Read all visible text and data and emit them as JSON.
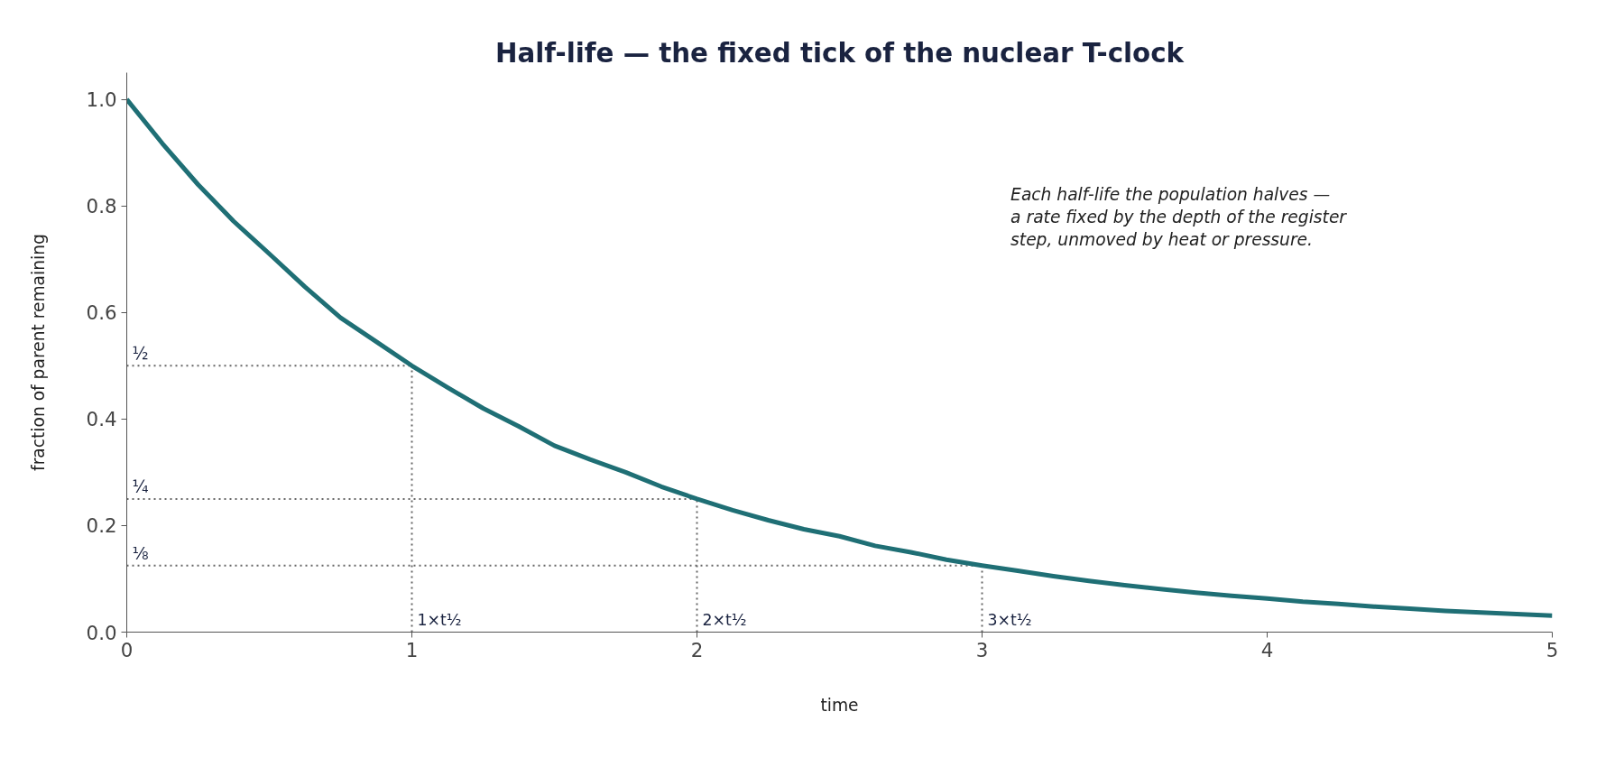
{
  "chart_data": {
    "type": "line",
    "title": "Half-life — the fixed tick of the nuclear T-clock",
    "xlabel": "time",
    "ylabel": "fraction of parent remaining",
    "x": [
      0,
      0.125,
      0.25,
      0.375,
      0.5,
      0.625,
      0.75,
      0.875,
      1,
      1.125,
      1.25,
      1.375,
      1.5,
      1.625,
      1.75,
      1.875,
      2,
      2.125,
      2.25,
      2.375,
      2.5,
      2.625,
      2.75,
      2.875,
      3,
      3.125,
      3.25,
      3.375,
      3.5,
      3.625,
      3.75,
      3.875,
      4,
      4.125,
      4.25,
      4.375,
      4.5,
      4.625,
      4.75,
      4.875,
      5
    ],
    "series": [
      {
        "color": "#1f6f75",
        "values": [
          1.0,
          0.917,
          0.84,
          0.771,
          0.71,
          0.648,
          0.59,
          0.545,
          0.5,
          0.459,
          0.42,
          0.386,
          0.35,
          0.324,
          0.3,
          0.273,
          0.25,
          0.229,
          0.21,
          0.193,
          0.18,
          0.162,
          0.15,
          0.136,
          0.125,
          0.115,
          0.105,
          0.096,
          0.088,
          0.081,
          0.074,
          0.068,
          0.063,
          0.057,
          0.053,
          0.048,
          0.044,
          0.04,
          0.037,
          0.034,
          0.031
        ]
      }
    ],
    "xlim": [
      0,
      5
    ],
    "xticks": [
      0,
      1,
      2,
      3,
      4,
      5
    ],
    "ylim": [
      0,
      1.05
    ],
    "yticks": [
      {
        "value": 0.0,
        "label": "0.0"
      },
      0.2,
      0.4,
      0.6,
      0.8,
      {
        "value": 1.0,
        "label": "1.0"
      }
    ],
    "grid": false,
    "marker": "none",
    "line_style": "solid",
    "ref_lines": [
      {
        "axis": "y",
        "value": 0.5,
        "label": "½",
        "color": "#666666",
        "line_style": "dotted"
      },
      {
        "axis": "y",
        "value": 0.25,
        "label": "¼",
        "color": "#666666",
        "line_style": "dotted"
      },
      {
        "axis": "y",
        "value": 0.125,
        "label": "⅛",
        "color": "#666666",
        "line_style": "dotted"
      },
      {
        "axis": "x",
        "value": 1,
        "label": "1×t½",
        "color": "#666666",
        "line_style": "dotted"
      },
      {
        "axis": "x",
        "value": 2,
        "label": "2×t½",
        "color": "#666666",
        "line_style": "dotted"
      },
      {
        "axis": "x",
        "value": 3,
        "label": "3×t½",
        "color": "#666666",
        "line_style": "dotted"
      }
    ],
    "annotations": [
      "Each half-life the population halves —\na rate fixed by the depth of the register\nstep, unmoved by heat or pressure."
    ]
  }
}
